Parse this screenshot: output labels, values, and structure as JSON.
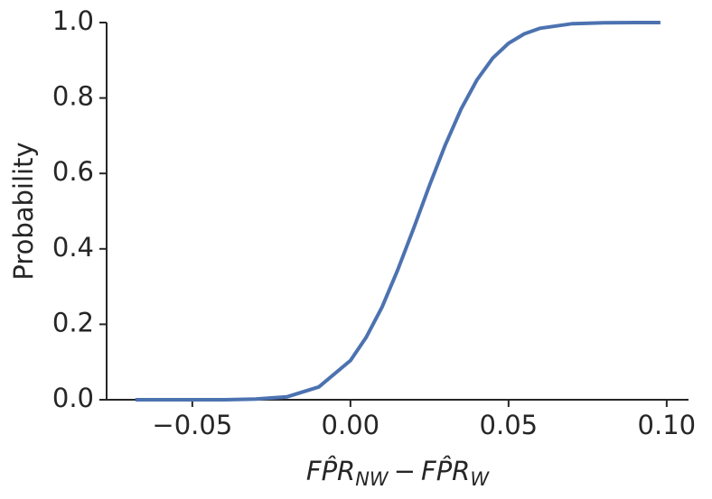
{
  "chart_data": {
    "type": "line",
    "y_label": "Probability",
    "x_label": {
      "main1": "FP̂R",
      "sub1": "NW",
      "op": "−",
      "main2": "FP̂R",
      "sub2": "W"
    },
    "x": [
      -0.068,
      -0.06,
      -0.05,
      -0.04,
      -0.03,
      -0.02,
      -0.01,
      0.0,
      0.005,
      0.01,
      0.015,
      0.02,
      0.025,
      0.03,
      0.035,
      0.04,
      0.045,
      0.05,
      0.055,
      0.06,
      0.07,
      0.08,
      0.09,
      0.098
    ],
    "values": [
      0.0,
      0.0,
      0.0,
      0.0,
      0.002,
      0.008,
      0.034,
      0.104,
      0.166,
      0.246,
      0.345,
      0.455,
      0.568,
      0.676,
      0.771,
      0.848,
      0.906,
      0.945,
      0.97,
      0.985,
      0.997,
      0.9995,
      0.9999,
      1.0
    ],
    "color": "#4c72b0",
    "xlim": [
      -0.0771,
      0.1069
    ],
    "ylim": [
      0,
      1
    ],
    "xticks": [
      {
        "value": -0.05,
        "label": "−0.05"
      },
      {
        "value": 0,
        "label": "0.00"
      },
      {
        "value": 0.05,
        "label": "0.05"
      },
      {
        "value": 0.1,
        "label": "0.10"
      }
    ],
    "yticks": [
      {
        "value": 0,
        "label": "0.0"
      },
      0.2,
      0.4,
      0.6,
      0.8,
      {
        "value": 1,
        "label": "1.0"
      }
    ]
  }
}
